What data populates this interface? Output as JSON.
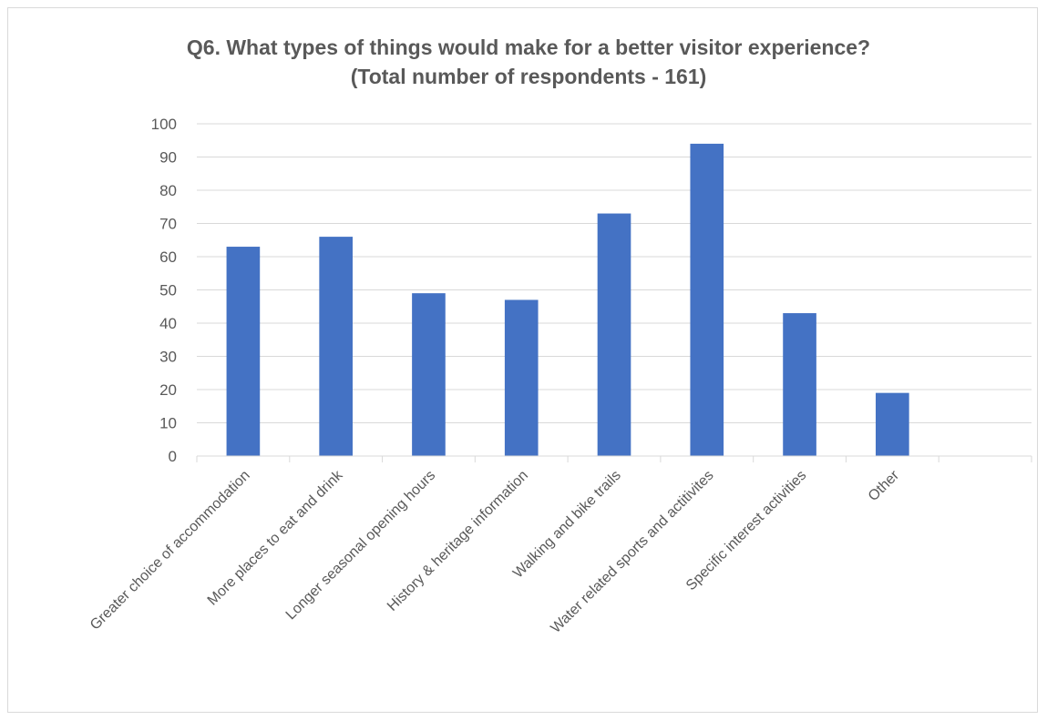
{
  "chart_data": {
    "type": "bar",
    "title": "Q6. What types of things would make for a better visitor experience?",
    "subtitle": "(Total number of respondents - 161)",
    "categories": [
      "Greater choice of accommodation",
      "More places to eat and drink",
      "Longer seasonal opening hours",
      "History & heritage information",
      "Walking and bike trails",
      "Water related sports and actitivites",
      "Specific interest activities",
      "Other",
      ""
    ],
    "values": [
      63,
      66,
      49,
      47,
      73,
      94,
      43,
      19,
      null
    ],
    "yticks": [
      0,
      10,
      20,
      30,
      40,
      50,
      60,
      70,
      80,
      90,
      100
    ],
    "ylim": [
      0,
      100
    ],
    "grid": true,
    "legend": "none",
    "bar_color": "#4472c4",
    "gridline_color": "#d9d9d9",
    "text_color": "#595959"
  }
}
